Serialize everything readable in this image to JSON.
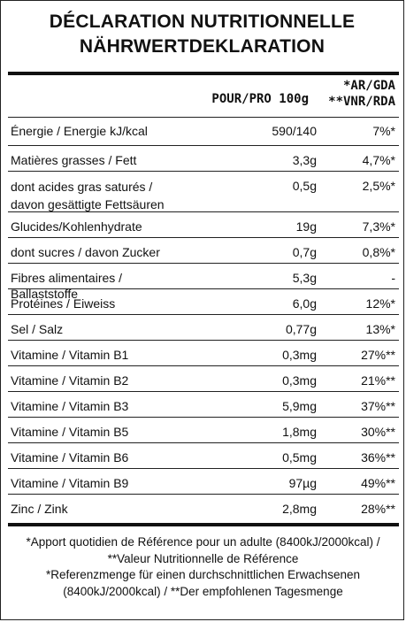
{
  "title": {
    "line1": "DÉCLARATION NUTRITIONNELLE",
    "line2": "NÄHRWERTDEKLARATION"
  },
  "header": {
    "per_100g": "POUR/PRO 100g",
    "ref_line1": "*AR/GDA",
    "ref_line2": "**VNR/RDA"
  },
  "rows": [
    {
      "name": "Énergie / Energie kJ/kcal",
      "per": "590/140",
      "rda": "7%*"
    },
    {
      "name": "Matières grasses / Fett",
      "per": "3,3g",
      "rda": "4,7%*"
    },
    {
      "name": "dont acides gras saturés /",
      "name2": "davon gesättigte Fettsäuren",
      "per": "0,5g",
      "rda": "2,5%*"
    },
    {
      "name": "Glucides/Kohlenhydrate",
      "per": "19g",
      "rda": "7,3%*"
    },
    {
      "name": "dont sucres / davon Zucker",
      "per": "0,7g",
      "rda": "0,8%*"
    },
    {
      "name": "Fibres alimentaires / Ballaststoffe",
      "per": "5,3g",
      "rda": "-"
    },
    {
      "name": "Protéines / Eiweiss",
      "per": "6,0g",
      "rda": "12%*"
    },
    {
      "name": "Sel / Salz",
      "per": "0,77g",
      "rda": "13%*"
    },
    {
      "name": "Vitamine / Vitamin B1",
      "per": "0,3mg",
      "rda": "27%**"
    },
    {
      "name": "Vitamine / Vitamin B2",
      "per": "0,3mg",
      "rda": "21%**"
    },
    {
      "name": "Vitamine / Vitamin B3",
      "per": "5,9mg",
      "rda": "37%**"
    },
    {
      "name": "Vitamine / Vitamin B5",
      "per": "1,8mg",
      "rda": "30%**"
    },
    {
      "name": "Vitamine / Vitamin B6",
      "per": "0,5mg",
      "rda": "36%**"
    },
    {
      "name": "Vitamine / Vitamin B9",
      "per": "97µg",
      "rda": "49%**"
    },
    {
      "name": "Zinc / Zink",
      "per": "2,8mg",
      "rda": "28%**"
    }
  ],
  "footnote": {
    "line1": "*Apport quotidien de Référence pour un adulte (8400kJ/2000kcal) /",
    "line2": "**Valeur Nutritionnelle de Référence",
    "line3": "*Referenzmenge für einen durchschnittlichen Erwachsenen",
    "line4": "(8400kJ/2000kcal) / **Der empfohlenen Tagesmenge"
  }
}
